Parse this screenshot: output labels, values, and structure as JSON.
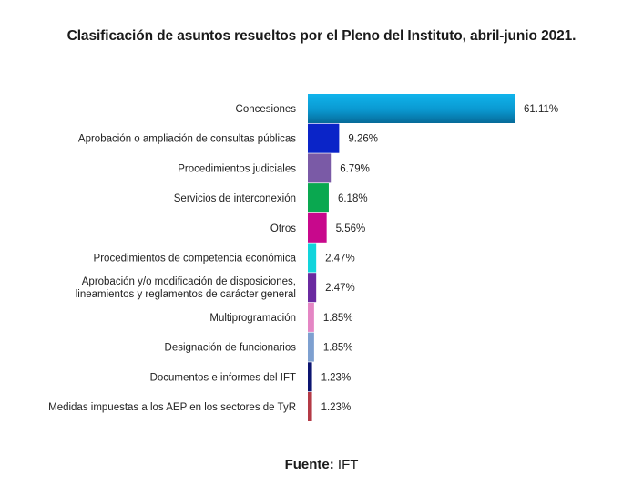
{
  "chart_data": {
    "type": "bar",
    "orientation": "horizontal",
    "title": "Clasificación de asuntos resueltos por el Pleno del Instituto, abril-junio 2021.",
    "categories": [
      "Concesiones",
      "Aprobación o ampliación de consultas públicas",
      "Procedimientos judiciales",
      "Servicios de interconexión",
      "Otros",
      "Procedimientos de competencia económica",
      "Aprobación y/o modificación de disposiciones,\nlineamientos y reglamentos de carácter general",
      "Multiprogramación",
      "Designación de funcionarios",
      "Documentos e informes del IFT",
      "Medidas impuestas a los AEP en los sectores de TyR"
    ],
    "values": [
      61.11,
      9.26,
      6.79,
      6.18,
      5.56,
      2.47,
      2.47,
      1.85,
      1.85,
      1.23,
      1.23
    ],
    "value_labels": [
      "61.11%",
      "9.26%",
      "6.79%",
      "6.18%",
      "5.56%",
      "2.47%",
      "2.47%",
      "1.85%",
      "1.85%",
      "1.23%",
      "1.23%"
    ],
    "colors": [
      "#0aa0dc",
      "#0a24c8",
      "#7a5aa6",
      "#0aa850",
      "#c8088c",
      "#12d4dc",
      "#6a2aa0",
      "#e486c4",
      "#7ea0d0",
      "#0c1470",
      "#b43a46"
    ],
    "xlim": [
      0,
      70
    ],
    "grid": false,
    "legend": "none"
  },
  "source": {
    "label": "Fuente:",
    "value": "IFT"
  }
}
